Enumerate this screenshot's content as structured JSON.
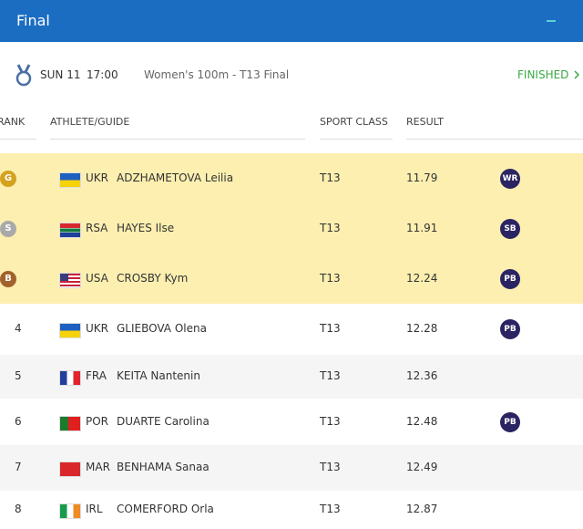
{
  "header": {
    "title": "Final"
  },
  "event": {
    "date": "SUN 11",
    "time": "17:00",
    "name": "Women's 100m - T13 Final",
    "status": "FINISHED"
  },
  "table": {
    "columns": [
      "RANK",
      "ATHLETE/GUIDE",
      "SPORT CLASS",
      "RESULT"
    ],
    "rows": [
      {
        "medal": "G",
        "country": "UKR",
        "athlete": "ADZHAMETOVA Leilia",
        "sport_class": "T13",
        "result": 11.79,
        "record": "WR"
      },
      {
        "medal": "S",
        "country": "RSA",
        "athlete": "HAYES Ilse",
        "sport_class": "T13",
        "result": 11.91,
        "record": "SB"
      },
      {
        "medal": "B",
        "country": "USA",
        "athlete": "CROSBY Kym",
        "sport_class": "T13",
        "result": 12.24,
        "record": "PB"
      },
      {
        "rank": 4,
        "country": "UKR",
        "athlete": "GLIEBOVA Olena",
        "sport_class": "T13",
        "result": 12.28,
        "record": "PB"
      },
      {
        "rank": 5,
        "country": "FRA",
        "athlete": "KEITA Nantenin",
        "sport_class": "T13",
        "result": 12.36
      },
      {
        "rank": 6,
        "country": "POR",
        "athlete": "DUARTE Carolina",
        "sport_class": "T13",
        "result": 12.48,
        "record": "PB"
      },
      {
        "rank": 7,
        "country": "MAR",
        "athlete": "BENHAMA Sanaa",
        "sport_class": "T13",
        "result": 12.49
      },
      {
        "rank": 8,
        "country": "IRL",
        "athlete": "COMERFORD Orla",
        "sport_class": "T13",
        "result": 12.87
      }
    ]
  }
}
